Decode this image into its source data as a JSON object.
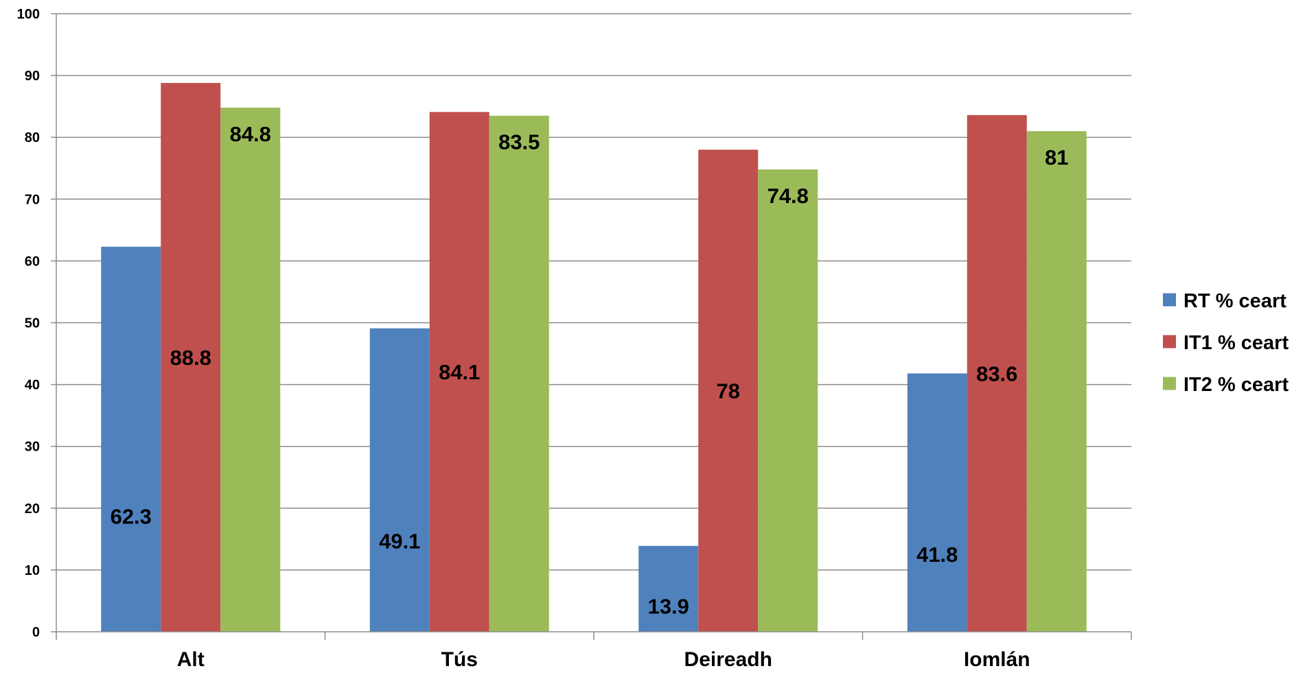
{
  "chart_data": {
    "type": "bar",
    "title": "",
    "xlabel": "",
    "ylabel": "",
    "categories": [
      "Alt",
      "Tús",
      "Deireadh",
      "Iomlán"
    ],
    "series": [
      {
        "name": "RT % ceart",
        "color": "#4F81BD",
        "values": [
          62.3,
          49.1,
          13.9,
          41.8
        ]
      },
      {
        "name": "IT1 % ceart",
        "color": "#C0504D",
        "values": [
          88.8,
          84.1,
          78,
          83.6
        ]
      },
      {
        "name": "IT2 % ceart",
        "color": "#9BBB59",
        "values": [
          84.8,
          83.5,
          74.8,
          81
        ]
      }
    ],
    "ylim": [
      0,
      100
    ],
    "yticks": [
      0,
      10,
      20,
      30,
      40,
      50,
      60,
      70,
      80,
      90,
      100
    ],
    "grid": true,
    "legend_position": "right",
    "data_labels": true
  }
}
